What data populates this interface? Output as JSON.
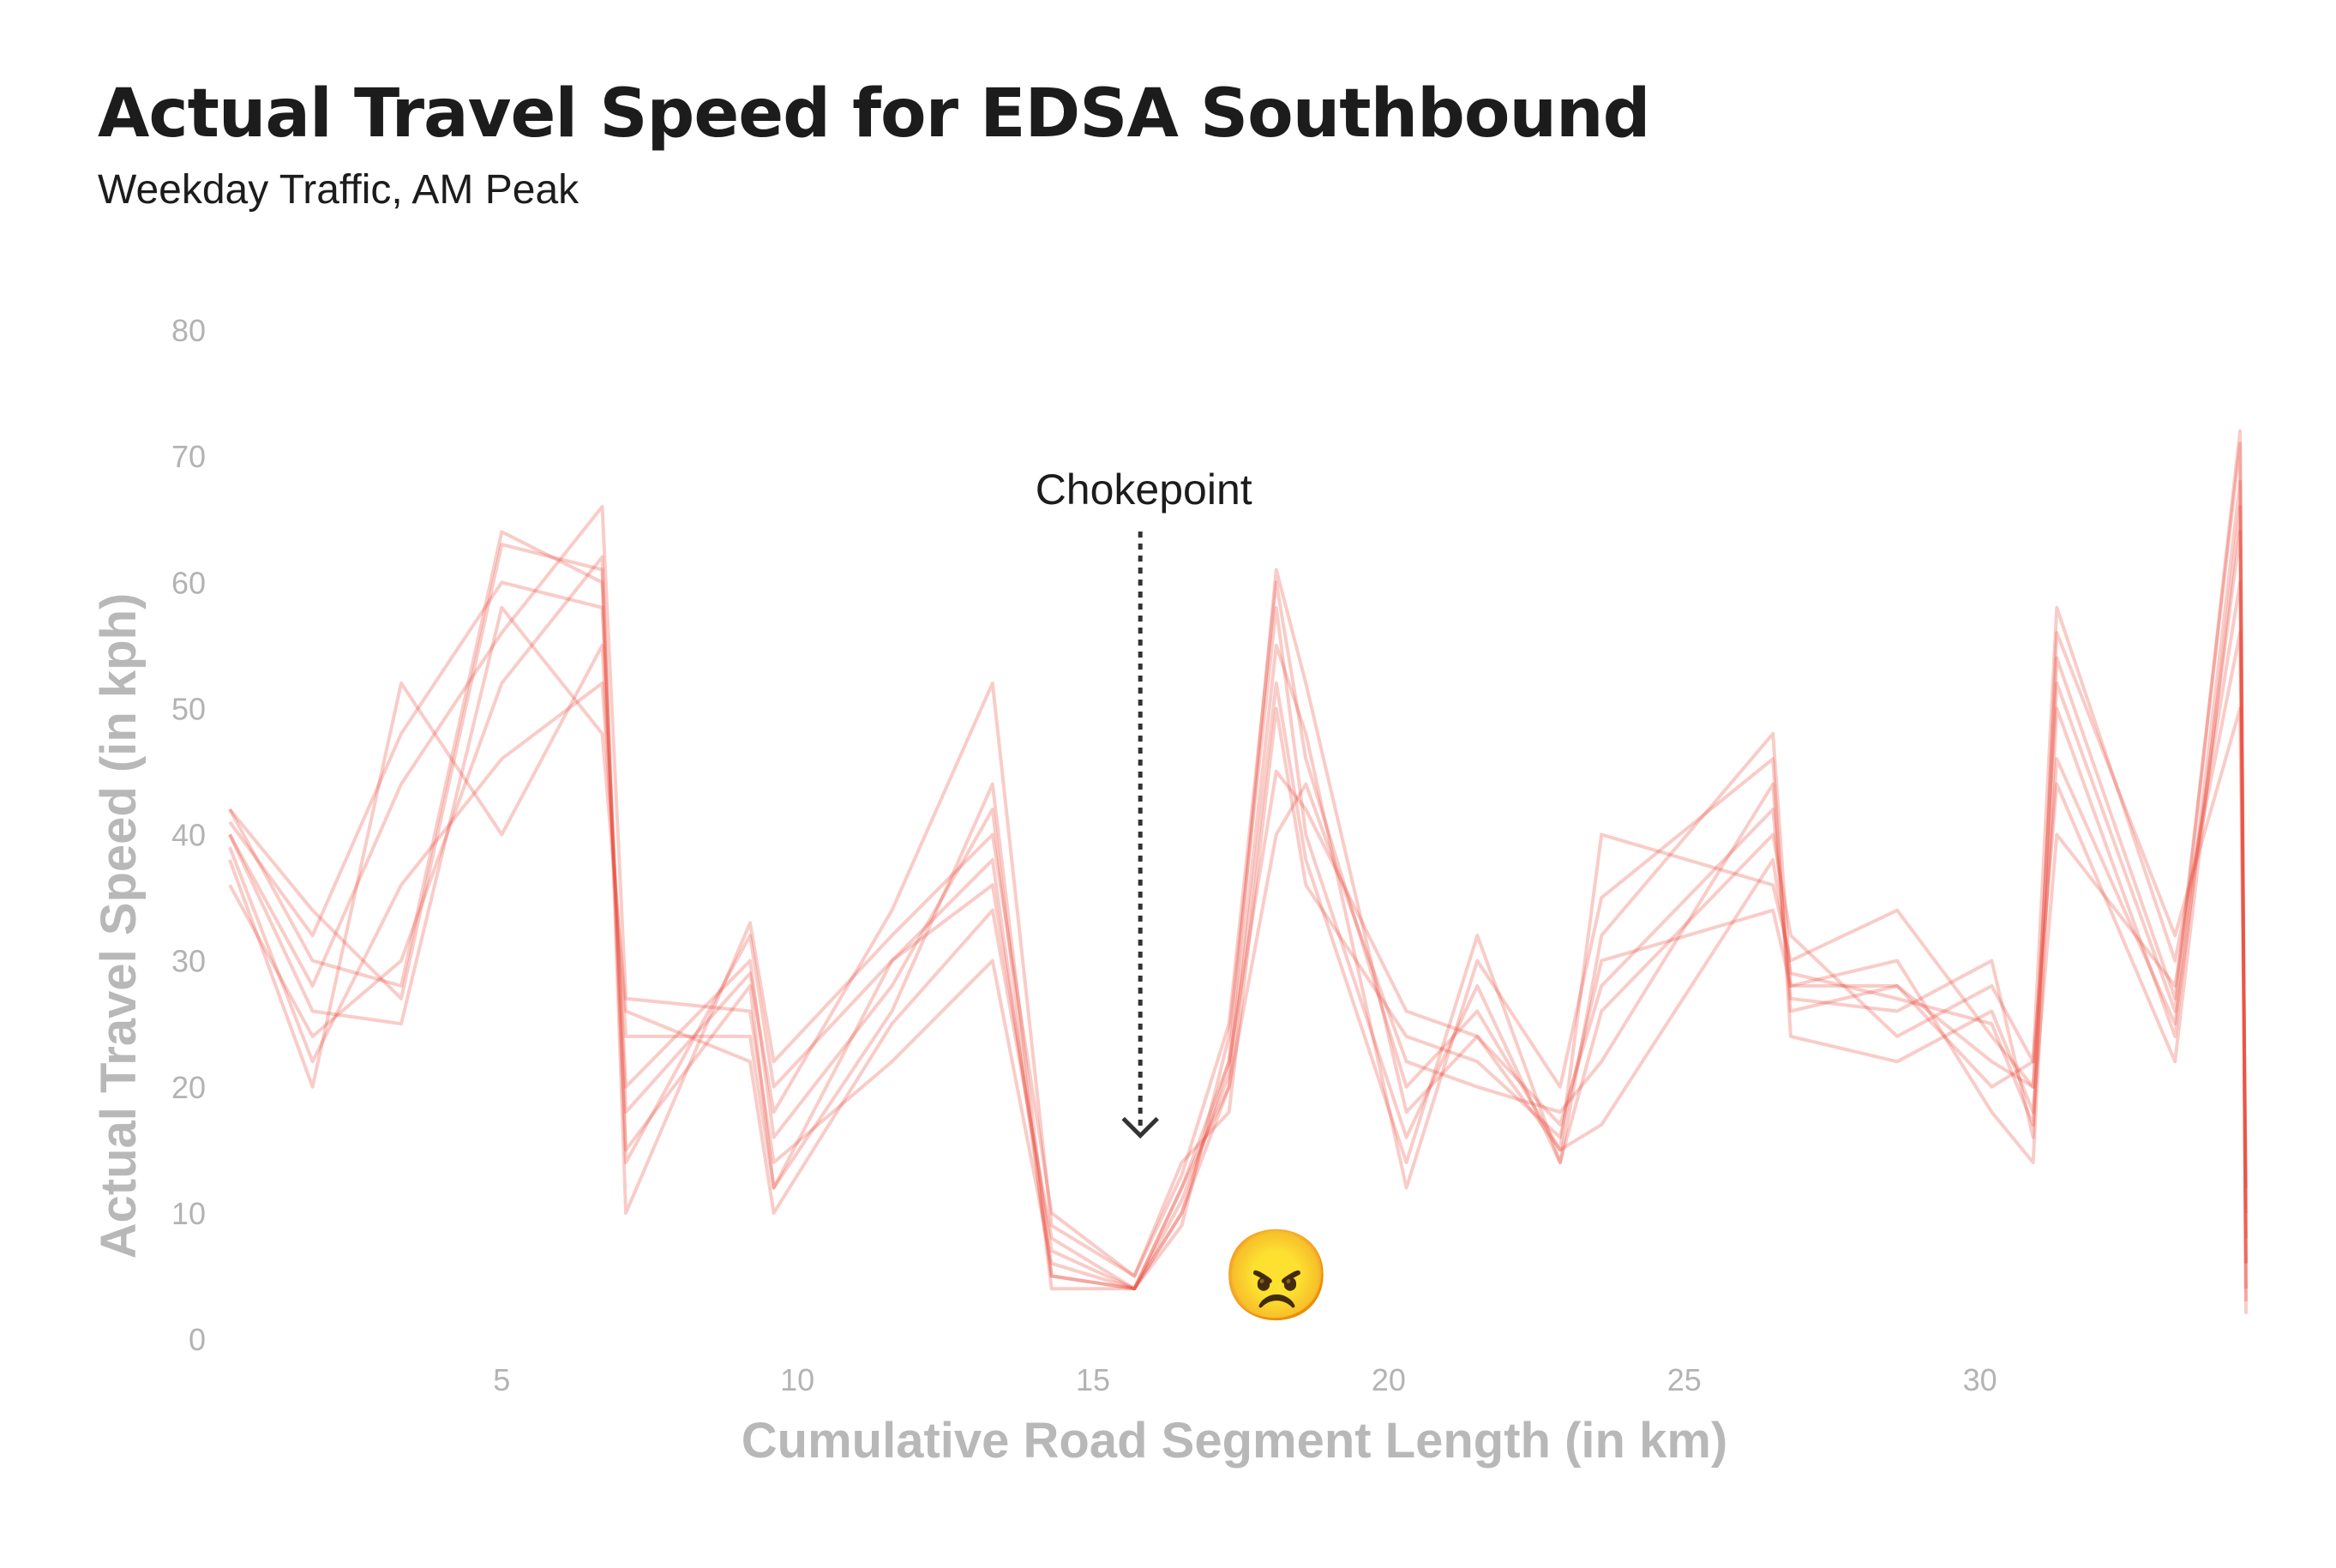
{
  "title": "Actual Travel Speed for EDSA Southbound",
  "subtitle": "Weekday Traffic, AM Peak",
  "chart_data": {
    "type": "line",
    "title": "Actual Travel Speed for EDSA Southbound",
    "subtitle": "Weekday Traffic, AM Peak",
    "xlabel": "Cumulative Road Segment Length (in km)",
    "ylabel": "Actual Travel Speed (in kph)",
    "xlim": [
      0.4,
      34.5
    ],
    "ylim": [
      0,
      80
    ],
    "x_ticks": [
      5,
      10,
      15,
      20,
      25,
      30
    ],
    "y_ticks": [
      0,
      10,
      20,
      30,
      40,
      50,
      60,
      70,
      80
    ],
    "grid": false,
    "legend": "none",
    "line_color": "#e8493a",
    "x": [
      0.4,
      1.8,
      3.3,
      5.0,
      6.7,
      7.1,
      9.2,
      9.6,
      11.6,
      13.3,
      14.3,
      15.7,
      16.5,
      17.3,
      18.1,
      18.6,
      20.3,
      21.5,
      22.9,
      23.6,
      26.5,
      26.8,
      28.6,
      30.2,
      30.9,
      31.3,
      33.3,
      34.4,
      34.5
    ],
    "series": [
      {
        "values": [
          42,
          34,
          27,
          63,
          61,
          15,
          28,
          12,
          30,
          38,
          5,
          4,
          12,
          22,
          61,
          52,
          18,
          24,
          15,
          17,
          38,
          29,
          27,
          25,
          17,
          54,
          27,
          71,
          3
        ]
      },
      {
        "values": [
          40,
          26,
          25,
          58,
          48,
          26,
          22,
          10,
          25,
          34,
          8,
          4,
          10,
          20,
          40,
          44,
          22,
          20,
          18,
          22,
          44,
          26,
          28,
          22,
          20,
          46,
          25,
          64,
          6
        ]
      },
      {
        "values": [
          38,
          20,
          52,
          40,
          55,
          20,
          30,
          16,
          28,
          42,
          4,
          4,
          9,
          24,
          58,
          40,
          16,
          28,
          14,
          26,
          40,
          32,
          24,
          28,
          22,
          58,
          30,
          56,
          8
        ]
      },
      {
        "values": [
          36,
          24,
          30,
          52,
          62,
          10,
          33,
          22,
          32,
          40,
          10,
          5,
          14,
          18,
          50,
          36,
          24,
          22,
          16,
          30,
          34,
          28,
          30,
          18,
          14,
          50,
          24,
          68,
          4
        ]
      },
      {
        "values": [
          40,
          28,
          44,
          56,
          66,
          27,
          26,
          14,
          22,
          30,
          6,
          4,
          11,
          21,
          55,
          48,
          12,
          30,
          20,
          35,
          46,
          24,
          22,
          26,
          18,
          40,
          28,
          60,
          10
        ]
      },
      {
        "values": [
          41,
          32,
          48,
          60,
          58,
          18,
          29,
          18,
          34,
          52,
          9,
          5,
          13,
          25,
          60,
          46,
          20,
          26,
          15,
          40,
          36,
          30,
          34,
          24,
          20,
          52,
          26,
          72,
          2
        ]
      },
      {
        "values": [
          39,
          22,
          36,
          46,
          52,
          24,
          24,
          12,
          26,
          44,
          5,
          4,
          10,
          22,
          45,
          42,
          26,
          24,
          17,
          28,
          42,
          27,
          26,
          30,
          16,
          56,
          32,
          50,
          12
        ]
      },
      {
        "values": [
          42,
          30,
          28,
          64,
          60,
          14,
          32,
          20,
          30,
          36,
          7,
          4,
          12,
          20,
          52,
          38,
          14,
          32,
          14,
          32,
          48,
          28,
          28,
          20,
          22,
          44,
          22,
          66,
          6
        ]
      }
    ],
    "annotations": [
      {
        "text": "Chokepoint",
        "x": 15.8,
        "y": 16
      },
      {
        "text": "😠",
        "x": 18.1,
        "y": 6
      }
    ]
  },
  "annotation": {
    "label": "Chokepoint",
    "emoji": "😠"
  }
}
